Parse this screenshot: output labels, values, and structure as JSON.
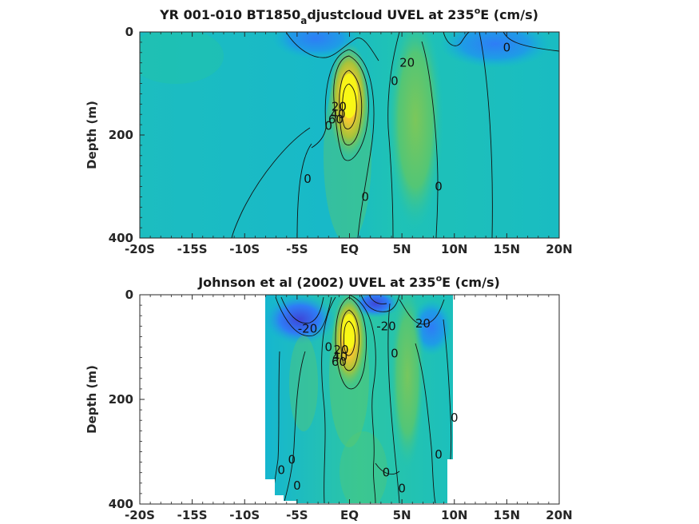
{
  "colors": {
    "background": "#ffffff",
    "axis": "#262626",
    "contour": "#111111"
  },
  "colormap": [
    "#3e26a8",
    "#2e7df6",
    "#13b5d6",
    "#21c4b0",
    "#59c86e",
    "#a8c33a",
    "#f5c630",
    "#f9fb14"
  ],
  "chart_data": [
    {
      "type": "heatmap",
      "title_main": "YR 001-010 BT1850",
      "title_subscript": "a",
      "title_tail": "djustcloud UVEL at 235",
      "title_superscript": "o",
      "title_end": "E (cm/s)",
      "ylabel": "Depth (m)",
      "xlim": [
        -20,
        20
      ],
      "ylim": [
        0,
        400
      ],
      "y_reversed": true,
      "x_ticks": [
        -20,
        -15,
        -10,
        -5,
        0,
        5,
        10,
        15,
        20
      ],
      "x_tick_labels": [
        "-20S",
        "-15S",
        "-10S",
        "-5S",
        "EQ",
        "5N",
        "10N",
        "15N",
        "20N"
      ],
      "y_ticks": [
        0,
        200,
        400
      ],
      "y_tick_labels": [
        "0",
        "200",
        "400"
      ],
      "data_extent_lat": [
        -20,
        20
      ],
      "data_extent_depth": [
        0,
        400
      ],
      "background_level": 0,
      "features": [
        {
          "kind": "core",
          "lat": 0,
          "depth": 120,
          "value": 100
        },
        {
          "kind": "jet",
          "lat": 5.5,
          "depth": 50,
          "value": 25
        },
        {
          "kind": "westward",
          "lat": -3,
          "depth": 20,
          "value": -25
        },
        {
          "kind": "westward",
          "lat": 9,
          "depth": 25,
          "value": -25
        }
      ],
      "contour_labels": [
        {
          "text": "20",
          "lat": 5.5,
          "depth": 60
        },
        {
          "text": "0",
          "lat": 4.3,
          "depth": 95
        },
        {
          "text": "0",
          "lat": 15,
          "depth": 30
        },
        {
          "text": "20",
          "lat": -1.0,
          "depth": 145
        },
        {
          "text": "40",
          "lat": -1.1,
          "depth": 160
        },
        {
          "text": "60",
          "lat": -1.3,
          "depth": 170
        },
        {
          "text": "0",
          "lat": -2.0,
          "depth": 182
        },
        {
          "text": "0",
          "lat": -4.0,
          "depth": 285
        },
        {
          "text": "0",
          "lat": 1.5,
          "depth": 320
        },
        {
          "text": "0",
          "lat": 8.5,
          "depth": 300
        }
      ]
    },
    {
      "type": "heatmap",
      "title_main": "Johnson et al (2002) UVEL at 235",
      "title_superscript": "o",
      "title_end": "E (cm/s)",
      "ylabel": "Depth (m)",
      "xlim": [
        -20,
        20
      ],
      "ylim": [
        0,
        400
      ],
      "y_reversed": true,
      "x_ticks": [
        -20,
        -15,
        -10,
        -5,
        0,
        5,
        10,
        15,
        20
      ],
      "x_tick_labels": [
        "-20S",
        "-15S",
        "-10S",
        "-5S",
        "EQ",
        "5N",
        "10N",
        "15N",
        "20N"
      ],
      "y_ticks": [
        0,
        200,
        400
      ],
      "y_tick_labels": [
        "0",
        "200",
        "400"
      ],
      "data_extent_lat": [
        -8,
        10
      ],
      "data_extent_depth": [
        0,
        400
      ],
      "background_level": 0,
      "features": [
        {
          "kind": "core",
          "lat": 0,
          "depth": 95,
          "value": 100
        },
        {
          "kind": "jet",
          "lat": 5.5,
          "depth": 50,
          "value": 25
        },
        {
          "kind": "westward",
          "lat": -4,
          "depth": 30,
          "value": -30
        },
        {
          "kind": "westward",
          "lat": 2.5,
          "depth": 15,
          "value": -40
        }
      ],
      "contour_labels": [
        {
          "text": "-20",
          "lat": -4.0,
          "depth": 65
        },
        {
          "text": "-20",
          "lat": 3.5,
          "depth": 60
        },
        {
          "text": "20",
          "lat": 7.0,
          "depth": 55
        },
        {
          "text": "0",
          "lat": -2.0,
          "depth": 100
        },
        {
          "text": "20",
          "lat": -0.8,
          "depth": 105
        },
        {
          "text": "40",
          "lat": -0.9,
          "depth": 118
        },
        {
          "text": "60",
          "lat": -1.0,
          "depth": 128
        },
        {
          "text": "0",
          "lat": 4.3,
          "depth": 112
        },
        {
          "text": "0",
          "lat": -5.5,
          "depth": 315
        },
        {
          "text": "0",
          "lat": -6.5,
          "depth": 335
        },
        {
          "text": "0",
          "lat": -5.0,
          "depth": 365
        },
        {
          "text": "0",
          "lat": 3.5,
          "depth": 340
        },
        {
          "text": "0",
          "lat": 5.0,
          "depth": 370
        },
        {
          "text": "0",
          "lat": 8.5,
          "depth": 305
        },
        {
          "text": "0",
          "lat": 10.0,
          "depth": 235
        }
      ]
    }
  ]
}
